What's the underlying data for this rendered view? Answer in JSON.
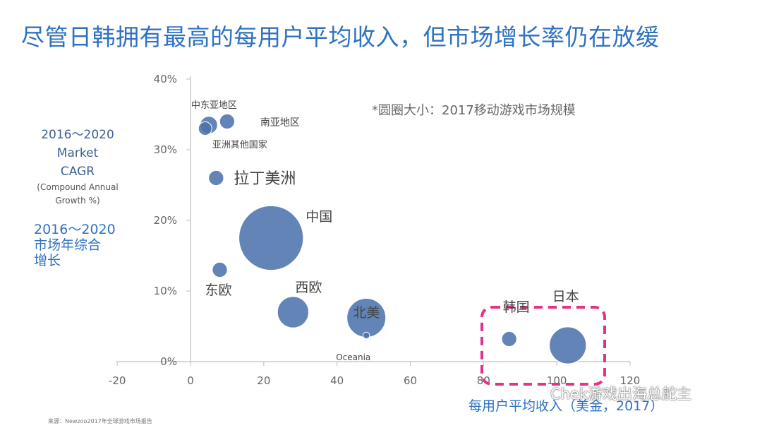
{
  "title": "尽管日韩拥有最高的每用户平均收入，但市场增长率仍在放缓",
  "ylabel_en": {
    "line1": "2016～2020",
    "line2": "Market",
    "line3": "CAGR",
    "line4": "(Compound Annual",
    "line5": "Growth %)"
  },
  "ylabel_cn": {
    "line1": "2016～2020",
    "line2": "市场年综合",
    "line3": "增长"
  },
  "note": "*圆圈大小：2017移动游戏市场规模",
  "xlabel": "每用户平均收入（美金，2017）",
  "source": "来源：Newzoo2017年全球游戏市场报告",
  "watermark": "Chek游戏出海总舵主",
  "colors": {
    "bubble": "#4d73ad",
    "highlight": "#e0338a",
    "title": "#2f72c2"
  },
  "chart_data": {
    "type": "scatter",
    "xlim": [
      -20,
      120
    ],
    "ylim": [
      0,
      40
    ],
    "x_ticks": [
      "-20",
      "0",
      "20",
      "40",
      "60",
      "80",
      "100",
      "120"
    ],
    "y_ticks": [
      "0%",
      "10%",
      "20%",
      "30%",
      "40%"
    ],
    "y_unit": "%",
    "grid": false,
    "points": [
      {
        "name": "中东亚地区",
        "x": 5,
        "y": 33.5,
        "size": 2
      },
      {
        "name": "南亚地区",
        "x": 10,
        "y": 34,
        "size": 1.5
      },
      {
        "name": "亚洲其他国家",
        "x": 4,
        "y": 33,
        "size": 1.2
      },
      {
        "name": "拉丁美洲",
        "x": 7,
        "y": 26,
        "size": 1.5
      },
      {
        "name": "中国",
        "x": 22,
        "y": 17.5,
        "size": 27.5
      },
      {
        "name": "东欧",
        "x": 8,
        "y": 13,
        "size": 1.5
      },
      {
        "name": "西欧",
        "x": 28,
        "y": 7,
        "size": 6.5
      },
      {
        "name": "北美",
        "x": 48,
        "y": 6.2,
        "size": 10
      },
      {
        "name": "Oceania",
        "x": 48,
        "y": 3.7,
        "size": 0.3
      },
      {
        "name": "韩国",
        "x": 87,
        "y": 3.2,
        "size": 1.5
      },
      {
        "name": "日本",
        "x": 103,
        "y": 2.3,
        "size": 9
      }
    ],
    "highlight_group": [
      "韩国",
      "日本"
    ]
  }
}
